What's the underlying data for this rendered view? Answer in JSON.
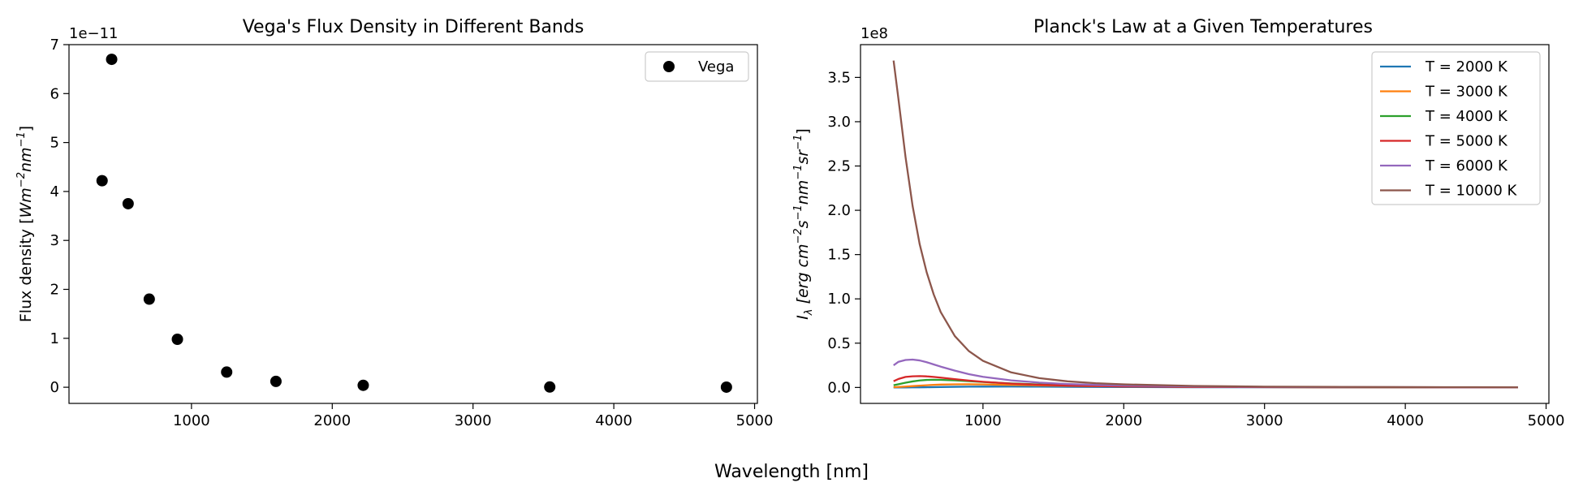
{
  "figure": {
    "shared_xlabel": "Wavelength [nm]"
  },
  "chart_data": [
    {
      "type": "scatter",
      "title": "Vega's Flux Density in Different Bands",
      "xlabel": "",
      "ylabel_text": "Flux density [",
      "ylabel_units": "Wm",
      "ylabel_exp1": "−2",
      "ylabel_mid": "nm",
      "ylabel_exp2": "−1",
      "ylabel_close": "]",
      "y_offset_label": "1e−11",
      "xlim": [
        130,
        5020
      ],
      "ylim": [
        -0.33,
        7.0
      ],
      "xticks": [
        1000,
        2000,
        3000,
        4000,
        5000
      ],
      "xtick_labels": [
        "1000",
        "2000",
        "3000",
        "4000",
        "5000"
      ],
      "yticks": [
        0,
        1,
        2,
        3,
        4,
        5,
        6,
        7
      ],
      "ytick_labels": [
        "0",
        "1",
        "2",
        "3",
        "4",
        "5",
        "6",
        "7"
      ],
      "legend": {
        "position": "upper right",
        "entries": [
          "Vega"
        ]
      },
      "series": [
        {
          "name": "Vega",
          "color": "#000000",
          "x": [
            365,
            433,
            550,
            700,
            900,
            1250,
            1600,
            2220,
            3545,
            4800
          ],
          "y": [
            4.22,
            6.7,
            3.75,
            1.8,
            0.98,
            0.31,
            0.12,
            0.04,
            0.005,
            0.002
          ]
        }
      ]
    },
    {
      "type": "line",
      "title": "Planck's Law at a Given Temperatures",
      "xlabel": "",
      "ylabel_var": "I",
      "ylabel_sub": "λ",
      "ylabel_text": " [erg cm",
      "ylabel_e1": "−2",
      "ylabel_s": "s",
      "ylabel_e2": "−1",
      "ylabel_nm": "nm",
      "ylabel_e3": "−1",
      "ylabel_sr": "sr",
      "ylabel_e4": "−1",
      "ylabel_close": "]",
      "y_offset_label": "1e8",
      "xlim": [
        130,
        5020
      ],
      "ylim": [
        -0.18,
        3.87
      ],
      "xticks": [
        1000,
        2000,
        3000,
        4000,
        5000
      ],
      "xtick_labels": [
        "1000",
        "2000",
        "3000",
        "4000",
        "5000"
      ],
      "yticks": [
        0,
        0.5,
        1.0,
        1.5,
        2.0,
        2.5,
        3.0,
        3.5
      ],
      "ytick_labels": [
        "0.0",
        "0.5",
        "1.0",
        "1.5",
        "2.0",
        "2.5",
        "3.0",
        "3.5"
      ],
      "legend": {
        "position": "upper right"
      },
      "x": [
        365,
        400,
        450,
        500,
        550,
        600,
        650,
        700,
        800,
        900,
        1000,
        1200,
        1400,
        1600,
        1800,
        2000,
        2500,
        3000,
        3500,
        4000,
        4500,
        4800
      ],
      "series": [
        {
          "name": "T = 2000 K",
          "color": "#1f77b4",
          "values": [
            0.0001,
            0.0002,
            0.0004,
            0.0009,
            0.0017,
            0.0027,
            0.0038,
            0.005,
            0.0072,
            0.0088,
            0.0097,
            0.0099,
            0.0089,
            0.0075,
            0.0062,
            0.005,
            0.0029,
            0.0018,
            0.0011,
            0.0008,
            0.0005,
            0.0004
          ]
        },
        {
          "name": "T = 3000 K",
          "color": "#ff7f0e",
          "values": [
            0.0033,
            0.0058,
            0.0101,
            0.0152,
            0.0204,
            0.0253,
            0.0293,
            0.0323,
            0.0354,
            0.0358,
            0.0343,
            0.029,
            0.0232,
            0.0185,
            0.0148,
            0.0119,
            0.007,
            0.0044,
            0.0029,
            0.002,
            0.0014,
            0.0012
          ]
        },
        {
          "name": "T = 4000 K",
          "color": "#2ca02c",
          "values": [
            0.025,
            0.037,
            0.054,
            0.068,
            0.079,
            0.085,
            0.087,
            0.086,
            0.08,
            0.071,
            0.062,
            0.046,
            0.034,
            0.026,
            0.02,
            0.015,
            0.009,
            0.005,
            0.003,
            0.002,
            0.002,
            0.001
          ]
        },
        {
          "name": "T = 5000 K",
          "color": "#d62728",
          "values": [
            0.07,
            0.096,
            0.119,
            0.126,
            0.128,
            0.125,
            0.119,
            0.111,
            0.094,
            0.078,
            0.064,
            0.043,
            0.03,
            0.021,
            0.016,
            0.012,
            0.006,
            0.004,
            0.002,
            0.002,
            0.001,
            0.001
          ]
        },
        {
          "name": "T = 6000 K",
          "color": "#9467bd",
          "values": [
            0.25,
            0.29,
            0.31,
            0.315,
            0.305,
            0.285,
            0.26,
            0.235,
            0.19,
            0.15,
            0.12,
            0.08,
            0.055,
            0.039,
            0.029,
            0.022,
            0.011,
            0.007,
            0.004,
            0.003,
            0.002,
            0.002
          ]
        },
        {
          "name": "T = 10000 K",
          "color": "#8c564b",
          "values": [
            3.69,
            3.25,
            2.6,
            2.05,
            1.62,
            1.3,
            1.05,
            0.85,
            0.58,
            0.41,
            0.3,
            0.17,
            0.105,
            0.069,
            0.048,
            0.035,
            0.017,
            0.009,
            0.006,
            0.004,
            0.003,
            0.002
          ]
        }
      ]
    }
  ]
}
